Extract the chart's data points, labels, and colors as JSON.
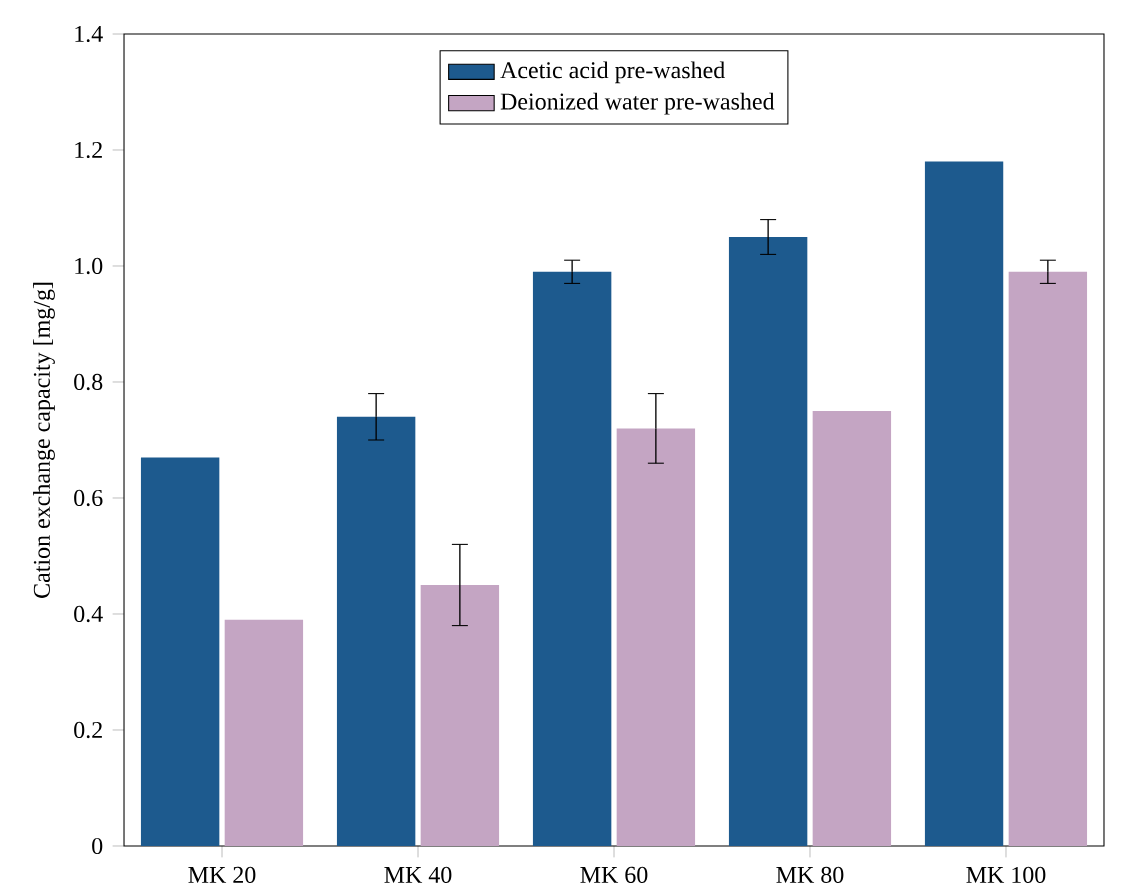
{
  "chart_data": {
    "type": "bar",
    "ylabel": "Cation exchange capacity [mg/g]",
    "categories": [
      "MK 20",
      "MK 40",
      "MK 60",
      "MK 80",
      "MK 100"
    ],
    "series": [
      {
        "name": "Acetic acid pre-washed",
        "color": "#1d5a8e",
        "values": [
          0.67,
          0.74,
          0.99,
          1.05,
          1.18
        ],
        "errors": [
          null,
          0.04,
          0.02,
          0.03,
          null
        ]
      },
      {
        "name": "Deionized water pre-washed",
        "color": "#c4a5c3",
        "values": [
          0.39,
          0.45,
          0.72,
          0.75,
          0.99
        ],
        "errors": [
          null,
          0.07,
          0.06,
          null,
          0.02
        ]
      }
    ],
    "ylim": [
      0,
      1.4
    ],
    "yticks": [
      0,
      0.2,
      0.4,
      0.6,
      0.8,
      {
        "value": 1,
        "label": "1.0"
      },
      1.2,
      1.4
    ],
    "legend": "top",
    "grid": false
  }
}
